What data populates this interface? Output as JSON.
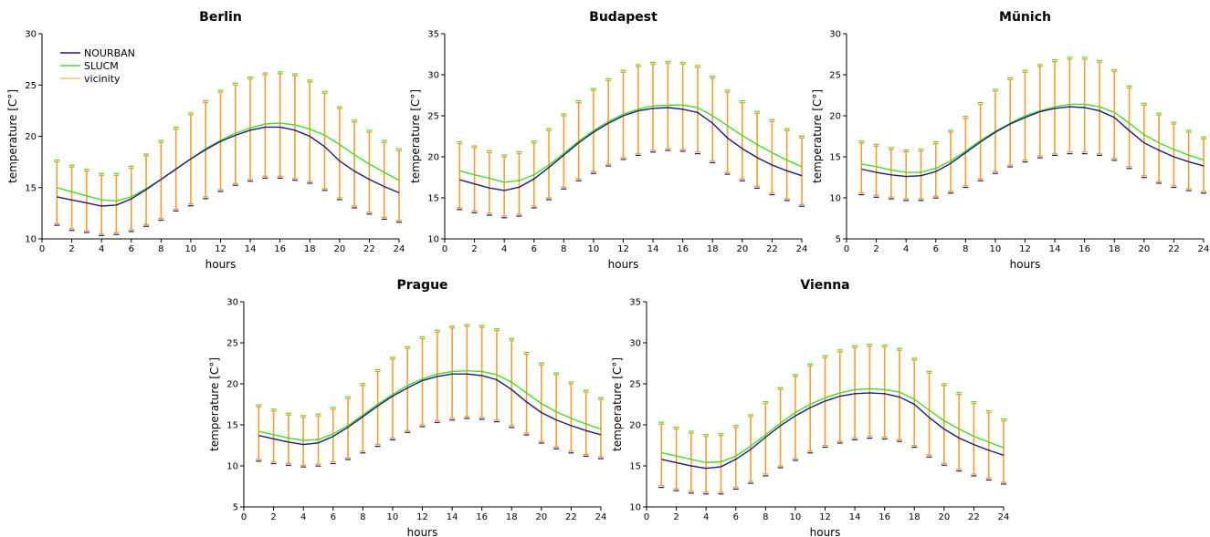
{
  "legend": {
    "items": [
      {
        "label": "NOURBAN",
        "color": "#1c1c80"
      },
      {
        "label": "SLUCM",
        "color": "#44dd22"
      },
      {
        "label": "vicinity",
        "color": "#f0a030"
      }
    ]
  },
  "colors": {
    "nourban": "#1c1c80",
    "slucm": "#44dd22",
    "vicinity": "#f0a030",
    "bar_marker_low": "#1c1c80"
  },
  "chart_data": [
    {
      "type": "line",
      "title": "Berlin",
      "xlabel": "hours",
      "ylabel": "temperature [C°]",
      "xlim": [
        0,
        24
      ],
      "ylim": [
        10,
        30
      ],
      "xticks": [
        0,
        2,
        4,
        6,
        8,
        10,
        12,
        14,
        16,
        18,
        20,
        22,
        24
      ],
      "yticks": [
        10,
        15,
        20,
        25,
        30
      ],
      "x": [
        1,
        2,
        3,
        4,
        5,
        6,
        7,
        8,
        9,
        10,
        11,
        12,
        13,
        14,
        15,
        16,
        17,
        18,
        19,
        20,
        21,
        22,
        23,
        24
      ],
      "series": [
        {
          "name": "NOURBAN",
          "values": [
            14.1,
            13.8,
            13.5,
            13.2,
            13.3,
            13.9,
            14.8,
            15.8,
            16.8,
            17.8,
            18.7,
            19.5,
            20.1,
            20.6,
            20.9,
            20.9,
            20.6,
            20.0,
            19.0,
            17.6,
            16.6,
            15.8,
            15.1,
            14.5
          ]
        },
        {
          "name": "SLUCM",
          "values": [
            15.0,
            14.6,
            14.2,
            13.8,
            13.7,
            14.1,
            14.9,
            15.8,
            16.8,
            17.8,
            18.8,
            19.6,
            20.3,
            20.8,
            21.2,
            21.3,
            21.1,
            20.7,
            20.1,
            19.2,
            18.2,
            17.3,
            16.5,
            15.7
          ]
        },
        {
          "name": "vicinity",
          "low": [
            11.5,
            11.0,
            10.8,
            10.5,
            10.6,
            10.9,
            11.4,
            12.0,
            12.9,
            13.4,
            14.1,
            14.8,
            15.4,
            15.8,
            16.1,
            16.1,
            15.9,
            15.6,
            14.9,
            14.0,
            13.2,
            12.6,
            12.1,
            11.8
          ],
          "high": [
            17.5,
            17.0,
            16.6,
            16.2,
            16.2,
            16.9,
            18.1,
            19.4,
            20.7,
            22.1,
            23.3,
            24.3,
            25.0,
            25.6,
            26.0,
            26.1,
            25.9,
            25.3,
            24.2,
            22.7,
            21.4,
            20.4,
            19.4,
            18.6
          ]
        }
      ]
    },
    {
      "type": "line",
      "title": "Budapest",
      "xlabel": "hours",
      "ylabel": "temperature [C°]",
      "xlim": [
        0,
        24
      ],
      "ylim": [
        10,
        35
      ],
      "xticks": [
        0,
        2,
        4,
        6,
        8,
        10,
        12,
        14,
        16,
        18,
        20,
        22,
        24
      ],
      "yticks": [
        10,
        15,
        20,
        25,
        30,
        35
      ],
      "x": [
        1,
        2,
        3,
        4,
        5,
        6,
        7,
        8,
        9,
        10,
        11,
        12,
        13,
        14,
        15,
        16,
        17,
        18,
        19,
        20,
        21,
        22,
        23,
        24
      ],
      "series": [
        {
          "name": "NOURBAN",
          "values": [
            17.2,
            16.7,
            16.2,
            15.9,
            16.3,
            17.3,
            18.7,
            20.2,
            21.7,
            23.0,
            24.1,
            25.0,
            25.6,
            25.9,
            26.0,
            25.8,
            25.4,
            24.1,
            22.3,
            21.0,
            19.9,
            19.0,
            18.3,
            17.7
          ]
        },
        {
          "name": "SLUCM",
          "values": [
            18.3,
            17.8,
            17.4,
            16.9,
            17.1,
            17.8,
            19.0,
            20.4,
            21.9,
            23.2,
            24.3,
            25.2,
            25.8,
            26.2,
            26.3,
            26.3,
            26.0,
            25.0,
            23.8,
            22.6,
            21.5,
            20.5,
            19.6,
            18.8
          ]
        },
        {
          "name": "vicinity",
          "low": [
            13.8,
            13.4,
            13.1,
            12.8,
            13.0,
            14.0,
            15.0,
            16.3,
            17.3,
            18.2,
            19.1,
            19.9,
            20.4,
            20.8,
            21.0,
            20.9,
            20.6,
            19.5,
            18.1,
            17.3,
            16.4,
            15.6,
            14.9,
            14.2
          ],
          " high": [],
          "high": [
            21.6,
            21.1,
            20.5,
            20.0,
            20.4,
            21.7,
            23.2,
            25.0,
            26.6,
            28.1,
            29.3,
            30.3,
            31.0,
            31.3,
            31.4,
            31.3,
            30.9,
            29.6,
            27.9,
            26.6,
            25.3,
            24.3,
            23.2,
            22.3
          ]
        }
      ]
    },
    {
      "type": "line",
      "title": "Münich",
      "xlabel": "hours",
      "ylabel": "temperature [C°]",
      "xlim": [
        0,
        24
      ],
      "ylim": [
        5,
        30
      ],
      "xticks": [
        0,
        2,
        4,
        6,
        8,
        10,
        12,
        14,
        16,
        18,
        20,
        22,
        24
      ],
      "yticks": [
        5,
        10,
        15,
        20,
        25,
        30
      ],
      "x": [
        1,
        2,
        3,
        4,
        5,
        6,
        7,
        8,
        9,
        10,
        11,
        12,
        13,
        14,
        15,
        16,
        17,
        18,
        19,
        20,
        21,
        22,
        23,
        24
      ],
      "series": [
        {
          "name": "NOURBAN",
          "values": [
            13.5,
            13.1,
            12.8,
            12.6,
            12.7,
            13.2,
            14.2,
            15.5,
            16.8,
            18.0,
            19.0,
            19.8,
            20.5,
            20.9,
            21.1,
            21.0,
            20.6,
            19.8,
            18.2,
            16.7,
            15.8,
            15.0,
            14.4,
            13.9
          ]
        },
        {
          "name": "SLUCM",
          "values": [
            14.1,
            13.8,
            13.4,
            13.1,
            13.1,
            13.6,
            14.5,
            15.7,
            17.0,
            18.1,
            19.1,
            20.0,
            20.6,
            21.1,
            21.4,
            21.4,
            21.1,
            20.4,
            19.1,
            17.7,
            16.7,
            15.9,
            15.2,
            14.6
          ]
        },
        {
          "name": "vicinity",
          "low": [
            10.6,
            10.3,
            10.1,
            9.9,
            9.9,
            10.2,
            10.8,
            11.5,
            12.3,
            13.2,
            14.0,
            14.6,
            15.1,
            15.4,
            15.6,
            15.6,
            15.4,
            14.8,
            13.8,
            12.7,
            12.0,
            11.5,
            11.1,
            10.8
          ],
          "high": [
            16.7,
            16.3,
            15.9,
            15.6,
            15.7,
            16.6,
            18.0,
            19.7,
            21.4,
            23.0,
            24.4,
            25.3,
            26.0,
            26.6,
            26.9,
            26.9,
            26.5,
            25.4,
            23.4,
            21.3,
            20.1,
            19.0,
            18.0,
            17.2
          ]
        }
      ]
    },
    {
      "type": "line",
      "title": "Prague",
      "xlabel": "hours",
      "ylabel": "temperature [C°]",
      "xlim": [
        0,
        24
      ],
      "ylim": [
        5,
        30
      ],
      "xticks": [
        0,
        2,
        4,
        6,
        8,
        10,
        12,
        14,
        16,
        18,
        20,
        22,
        24
      ],
      "yticks": [
        5,
        10,
        15,
        20,
        25,
        30
      ],
      "x": [
        1,
        2,
        3,
        4,
        5,
        6,
        7,
        8,
        9,
        10,
        11,
        12,
        13,
        14,
        15,
        16,
        17,
        18,
        19,
        20,
        21,
        22,
        23,
        24
      ],
      "series": [
        {
          "name": "NOURBAN",
          "values": [
            13.7,
            13.3,
            12.9,
            12.6,
            12.8,
            13.6,
            14.7,
            16.0,
            17.3,
            18.5,
            19.5,
            20.4,
            20.9,
            21.2,
            21.2,
            21.0,
            20.5,
            19.3,
            17.8,
            16.5,
            15.6,
            14.9,
            14.3,
            13.8
          ]
        },
        {
          "name": "SLUCM",
          "values": [
            14.2,
            13.8,
            13.4,
            13.1,
            13.2,
            13.9,
            14.9,
            16.2,
            17.5,
            18.7,
            19.8,
            20.6,
            21.2,
            21.5,
            21.6,
            21.5,
            21.1,
            20.2,
            18.9,
            17.6,
            16.6,
            15.8,
            15.1,
            14.5
          ]
        },
        {
          "name": "vicinity",
          "low": [
            10.8,
            10.5,
            10.3,
            10.1,
            10.2,
            10.5,
            11.0,
            11.8,
            12.6,
            13.4,
            14.3,
            15.0,
            15.5,
            15.8,
            16.0,
            15.9,
            15.6,
            14.9,
            14.0,
            13.0,
            12.3,
            11.8,
            11.4,
            11.1
          ],
          "high": [
            17.2,
            16.7,
            16.2,
            15.9,
            16.1,
            16.9,
            18.2,
            19.8,
            21.5,
            23.0,
            24.3,
            25.5,
            26.3,
            26.8,
            27.0,
            26.9,
            26.5,
            25.3,
            23.6,
            22.3,
            21.1,
            20.0,
            19.0,
            18.1
          ]
        }
      ]
    },
    {
      "type": "line",
      "title": "Vienna",
      "xlabel": "hours",
      "ylabel": "temperature [C°]",
      "xlim": [
        0,
        24
      ],
      "ylim": [
        10,
        35
      ],
      "xticks": [
        0,
        2,
        4,
        6,
        8,
        10,
        12,
        14,
        16,
        18,
        20,
        22,
        24
      ],
      "yticks": [
        10,
        15,
        20,
        25,
        30,
        35
      ],
      "x": [
        1,
        2,
        3,
        4,
        5,
        6,
        7,
        8,
        9,
        10,
        11,
        12,
        13,
        14,
        15,
        16,
        17,
        18,
        19,
        20,
        21,
        22,
        23,
        24
      ],
      "series": [
        {
          "name": "NOURBAN",
          "values": [
            15.8,
            15.4,
            15.0,
            14.7,
            14.9,
            15.8,
            17.0,
            18.5,
            19.9,
            21.1,
            22.1,
            22.9,
            23.5,
            23.8,
            23.9,
            23.8,
            23.4,
            22.5,
            20.9,
            19.5,
            18.4,
            17.6,
            16.9,
            16.3
          ]
        },
        {
          "name": "SLUCM",
          "values": [
            16.6,
            16.2,
            15.8,
            15.4,
            15.5,
            16.2,
            17.4,
            18.8,
            20.2,
            21.5,
            22.5,
            23.3,
            23.9,
            24.3,
            24.4,
            24.3,
            24.0,
            23.1,
            21.8,
            20.5,
            19.5,
            18.6,
            17.9,
            17.2
          ]
        },
        {
          "name": "vicinity",
          "low": [
            12.6,
            12.2,
            11.9,
            11.8,
            11.8,
            12.4,
            13.1,
            14.0,
            15.0,
            15.9,
            16.8,
            17.5,
            18.0,
            18.4,
            18.6,
            18.5,
            18.2,
            17.5,
            16.3,
            15.3,
            14.6,
            14.0,
            13.5,
            13.0
          ],
          "high": [
            20.1,
            19.5,
            19.0,
            18.6,
            18.7,
            19.7,
            21.0,
            22.6,
            24.3,
            25.9,
            27.2,
            28.2,
            28.9,
            29.4,
            29.6,
            29.5,
            29.1,
            27.9,
            26.3,
            24.8,
            23.7,
            22.6,
            21.5,
            20.5
          ]
        }
      ]
    }
  ]
}
